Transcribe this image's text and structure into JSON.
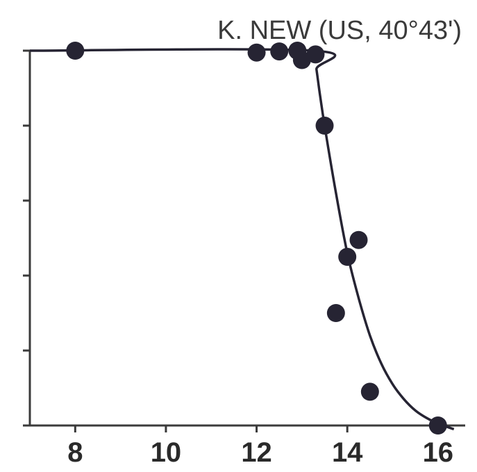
{
  "chart_data": {
    "type": "scatter",
    "title": "K. NEW (US, 40°43')",
    "xlabel": "",
    "ylabel": "",
    "xlim": [
      7,
      16.6
    ],
    "ylim": [
      0,
      1
    ],
    "x_ticks": [
      8,
      10,
      12,
      14,
      16
    ],
    "x_tick_labels": [
      "8",
      "10",
      "12",
      "14",
      "16"
    ],
    "y_ticks": [
      0,
      0.2,
      0.4,
      0.6,
      0.8,
      1.0
    ],
    "y_tick_labels": [],
    "grid": false,
    "legend": "none",
    "series": [
      {
        "kind": "points",
        "points": [
          {
            "x": 8.0,
            "y": 1.0
          },
          {
            "x": 12.0,
            "y": 0.995
          },
          {
            "x": 12.5,
            "y": 0.998
          },
          {
            "x": 12.9,
            "y": 1.0
          },
          {
            "x": 13.0,
            "y": 0.975
          },
          {
            "x": 13.3,
            "y": 0.99
          },
          {
            "x": 13.5,
            "y": 0.8
          },
          {
            "x": 13.75,
            "y": 0.3
          },
          {
            "x": 14.0,
            "y": 0.45
          },
          {
            "x": 14.25,
            "y": 0.495
          },
          {
            "x": 14.5,
            "y": 0.09
          },
          {
            "x": 16.0,
            "y": 0.0
          }
        ]
      },
      {
        "kind": "fit-curve",
        "points": [
          {
            "x": 7.0,
            "y": 1.0
          },
          {
            "x": 13.25,
            "y": 1.0
          },
          {
            "x": 13.32,
            "y": 0.95
          },
          {
            "x": 13.4,
            "y": 0.88
          },
          {
            "x": 13.5,
            "y": 0.8
          },
          {
            "x": 13.75,
            "y": 0.62
          },
          {
            "x": 14.0,
            "y": 0.46
          },
          {
            "x": 14.25,
            "y": 0.34
          },
          {
            "x": 14.5,
            "y": 0.24
          },
          {
            "x": 14.75,
            "y": 0.165
          },
          {
            "x": 15.0,
            "y": 0.11
          },
          {
            "x": 15.25,
            "y": 0.07
          },
          {
            "x": 15.5,
            "y": 0.04
          },
          {
            "x": 15.75,
            "y": 0.02
          },
          {
            "x": 16.0,
            "y": 0.005
          },
          {
            "x": 16.35,
            "y": -0.01
          }
        ]
      }
    ],
    "colors": {
      "points": "#262433",
      "curve": "#262433",
      "axes": "#3a3a3a",
      "text": "#2a2a2a"
    }
  }
}
